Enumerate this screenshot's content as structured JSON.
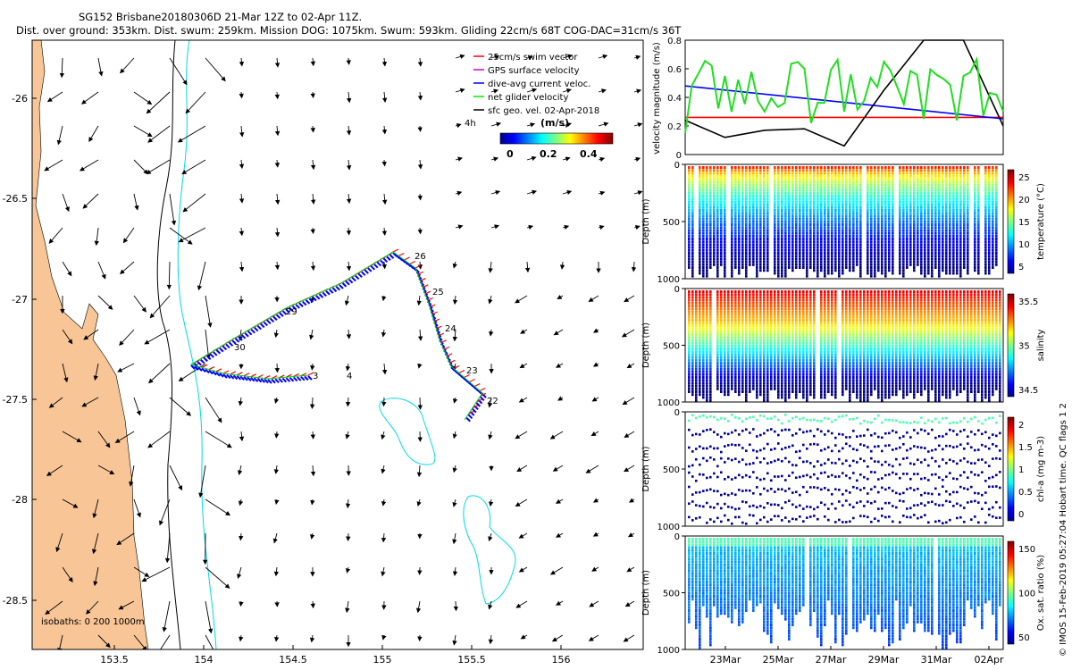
{
  "header": {
    "line1": "SG152 Brisbane20180306D 21-Mar 12Z to 02-Apr 11Z.",
    "line2": "Dist. over ground: 353km. Dist. swum: 259km. Mission DOG: 1075km. Swum: 593km. Gliding 22cm/s 68T COG-DAC=31cm/s 36T"
  },
  "map": {
    "legend": [
      {
        "label": "25cm/s swim vector",
        "color": "#ff0000"
      },
      {
        "label": "GPS surface velocity",
        "color": "#cc00cc"
      },
      {
        "label": "dive-avg current veloc.",
        "color": "#0000ff"
      },
      {
        "label": "net glider velocity",
        "color": "#00ee00"
      },
      {
        "label": "sfc geo. vel. 02-Apr-2018",
        "color": "#000000"
      }
    ],
    "arrow_scale_label": "4h",
    "colorbar_title": "(m/s)",
    "colorbar_ticks": [
      "0",
      "0.2",
      "0.4"
    ],
    "lon_ticks": [
      "153.5",
      "154",
      "154.5",
      "155",
      "155.5",
      "156"
    ],
    "lat_ticks": [
      "-26",
      "-26.5",
      "-27",
      "-27.5",
      "-28",
      "-28.5"
    ],
    "isobaths_label": "isobaths: 0   200  1000m",
    "track_day_labels": [
      "26",
      "25",
      "24",
      "23",
      "22",
      "3",
      "4",
      "29",
      "30"
    ]
  },
  "chart_data": [
    {
      "type": "line",
      "title": "",
      "ylabel": "velocity magnitude (m/s)",
      "ylim": [
        0,
        0.8
      ],
      "yticks": [
        "0",
        "0.2",
        "0.4",
        "0.6",
        "0.8"
      ],
      "series": [
        {
          "name": "swim speed",
          "color": "#ff0000",
          "values": [
            0.26,
            0.26
          ]
        },
        {
          "name": "mean current trend",
          "color": "#0000ff",
          "values": [
            0.48,
            0.25
          ]
        },
        {
          "name": "surface geostrophic",
          "color": "#000000",
          "values": [
            0.24,
            0.12,
            0.17,
            0.18,
            0.06,
            0.45,
            0.8,
            0.8,
            0.2
          ]
        },
        {
          "name": "net glider velocity",
          "color": "#22dd22",
          "values": [
            0.15,
            0.55,
            0.3,
            0.6,
            0.3,
            0.65,
            0.25,
            0.55,
            0.3
          ]
        }
      ]
    },
    {
      "type": "heatmap",
      "ylabel": "Depth (m)",
      "cbar_label": "temperature (°C)",
      "yticks": [
        "0",
        "500",
        "1000"
      ],
      "cbar_ticks": [
        "25",
        "20",
        "15",
        "10",
        "5"
      ],
      "range": [
        4,
        28
      ]
    },
    {
      "type": "heatmap",
      "ylabel": "Depth (m)",
      "cbar_label": "salinity",
      "yticks": [
        "0",
        "500",
        "1000"
      ],
      "cbar_ticks": [
        "35.5",
        "35",
        "34.5"
      ],
      "range": [
        34.3,
        35.9
      ]
    },
    {
      "type": "heatmap",
      "ylabel": "Depth (m)",
      "cbar_label": "chl-a (mg m-3)",
      "yticks": [
        "0",
        "500",
        "1000"
      ],
      "cbar_ticks": [
        "2",
        "1.5",
        "1",
        "0.5",
        "0"
      ],
      "range": [
        0,
        2
      ]
    },
    {
      "type": "heatmap",
      "ylabel": "Depth (m)",
      "cbar_label": "Ox. sat. ratio (%)",
      "xticks": [
        "23Mar",
        "25Mar",
        "27Mar",
        "29Mar",
        "31Mar",
        "02Apr"
      ],
      "yticks": [
        "0",
        "500",
        "1000"
      ],
      "cbar_ticks": [
        "150",
        "100",
        "50"
      ],
      "range": [
        30,
        170
      ]
    }
  ],
  "side_note": "© IMOS 15-Feb-2019 05:27:04 Hobart time. QC flags 1 2"
}
